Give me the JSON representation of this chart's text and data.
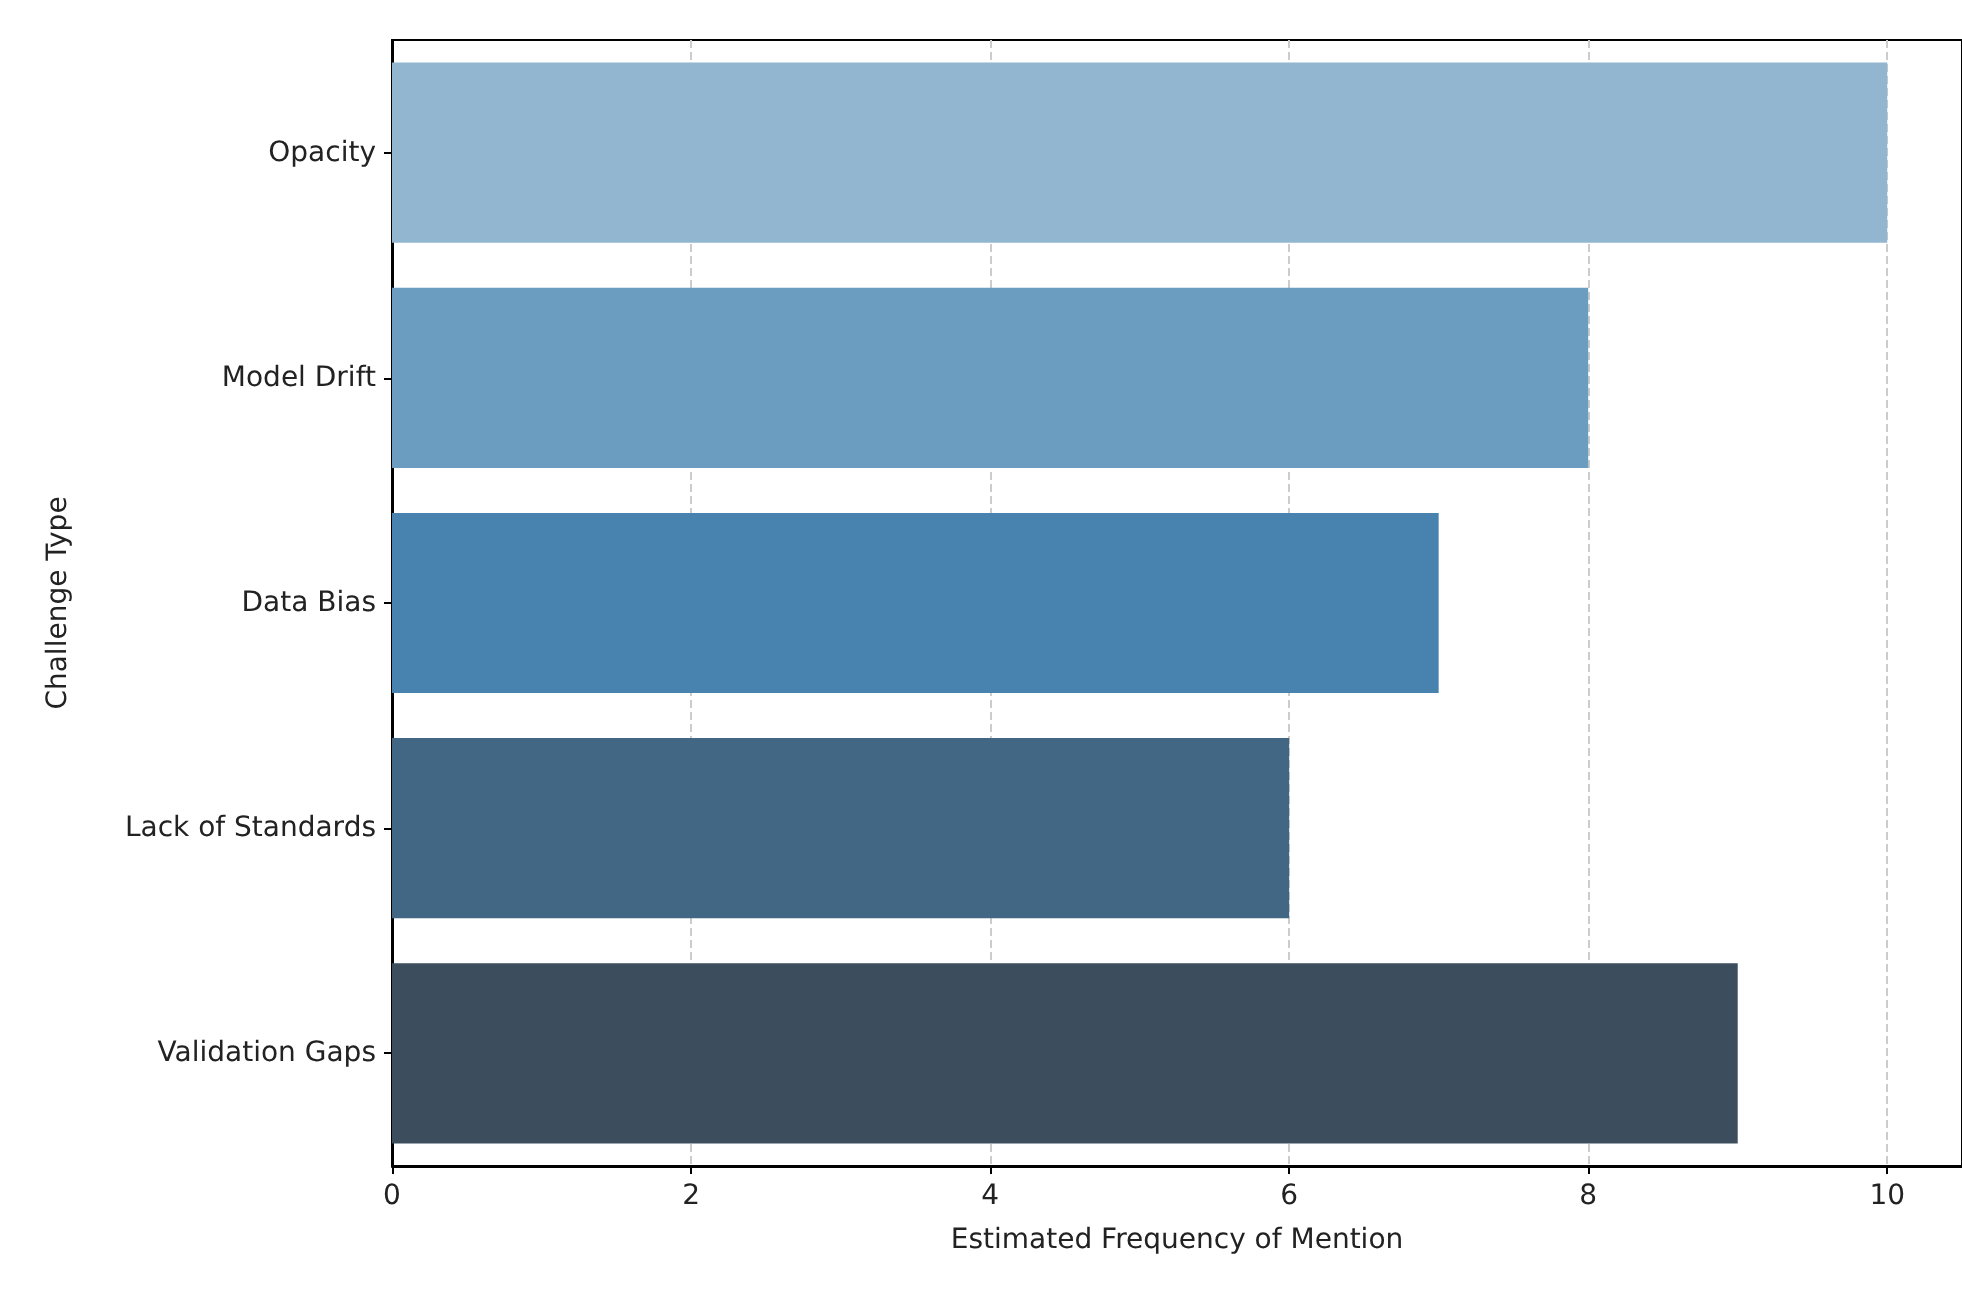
{
  "chart_data": {
    "type": "bar",
    "orientation": "horizontal",
    "xlabel": "Estimated Frequency of Mention",
    "ylabel": "Challenge Type",
    "categories": [
      "Opacity",
      "Model Drift",
      "Data Bias",
      "Lack of Standards",
      "Validation Gaps"
    ],
    "values": [
      10,
      8,
      7,
      6,
      9
    ],
    "colors": [
      "#92b5d0",
      "#6b9dc0",
      "#4883b0",
      "#416785",
      "#3c4e5d"
    ],
    "xlim": [
      0,
      10.5
    ],
    "xticks": [
      0,
      2,
      4,
      6,
      8,
      10
    ],
    "grid": "x"
  }
}
